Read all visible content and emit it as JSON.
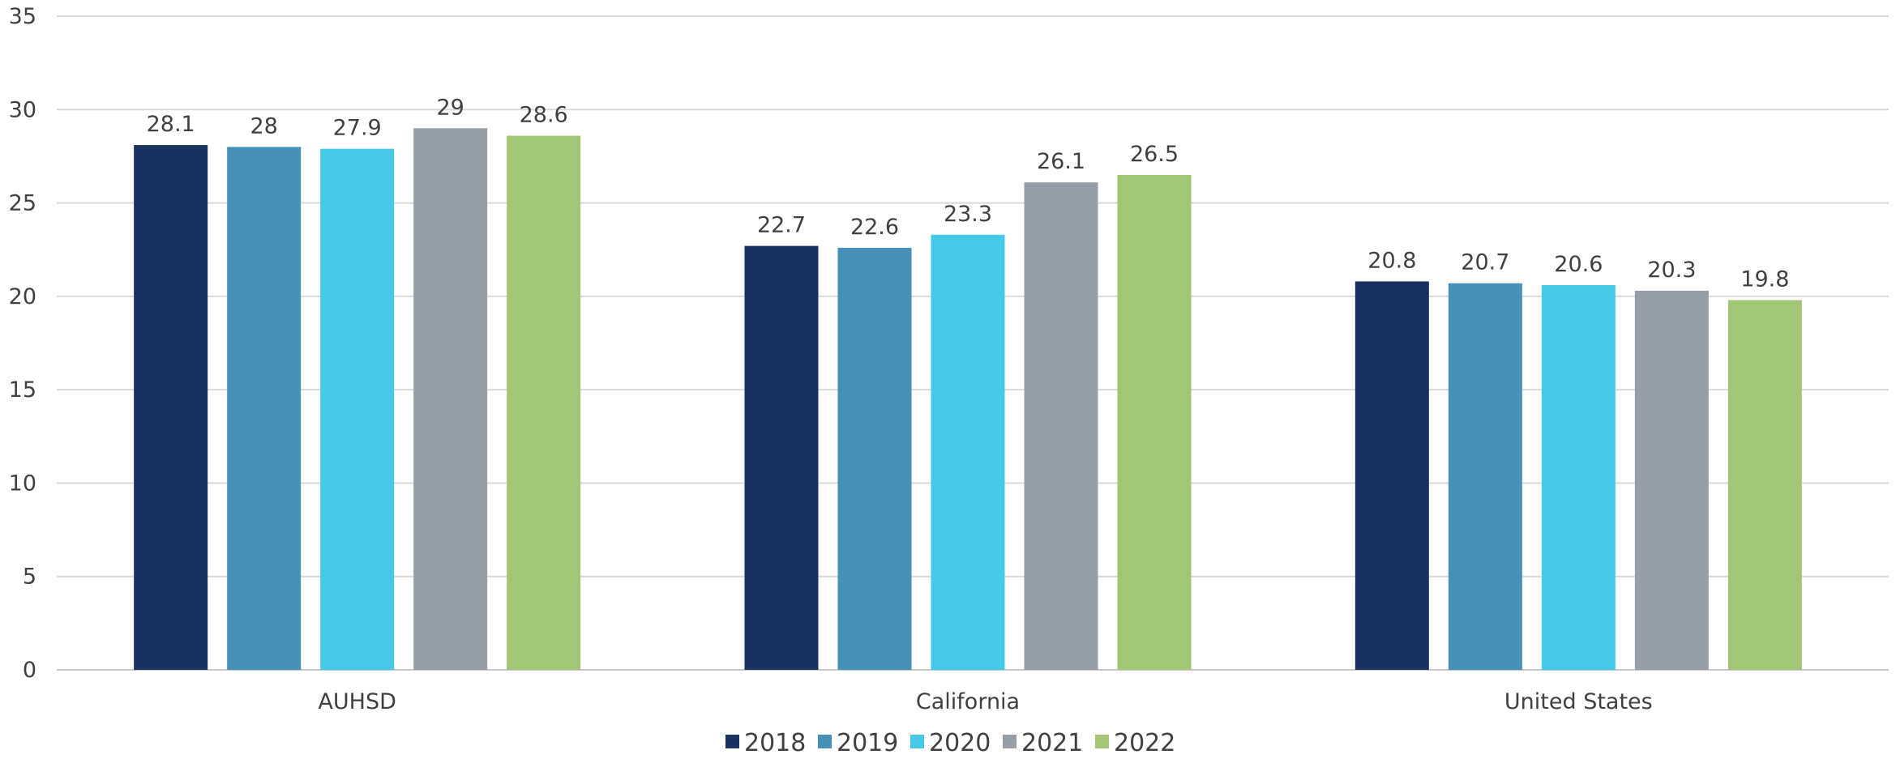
{
  "chart_data": {
    "type": "bar",
    "title": "",
    "xlabel": "",
    "ylabel": "",
    "ylim": [
      0,
      35
    ],
    "ytick_step": 5,
    "grid": true,
    "legend_position": "bottom",
    "categories": [
      "AUHSD",
      "California",
      "United States"
    ],
    "series": [
      {
        "name": "2018",
        "color": "#1b3260",
        "values": [
          28.1,
          22.7,
          20.8
        ]
      },
      {
        "name": "2019",
        "color": "#4790b8",
        "values": [
          28,
          22.6,
          20.7
        ]
      },
      {
        "name": "2020",
        "color": "#45c9e6",
        "values": [
          27.9,
          23.3,
          20.6
        ]
      },
      {
        "name": "2021",
        "color": "#969fa8",
        "values": [
          29,
          26.1,
          20.3
        ]
      },
      {
        "name": "2022",
        "color": "#a2c676",
        "values": [
          28.6,
          26.5,
          19.8
        ]
      }
    ],
    "data_labels": [
      [
        "28.1",
        "22.7",
        "20.8"
      ],
      [
        "28",
        "22.6",
        "20.7"
      ],
      [
        "27.9",
        "23.3",
        "20.6"
      ],
      [
        "29",
        "26.1",
        "20.3"
      ],
      [
        "28.6",
        "26.5",
        "19.8"
      ]
    ]
  }
}
